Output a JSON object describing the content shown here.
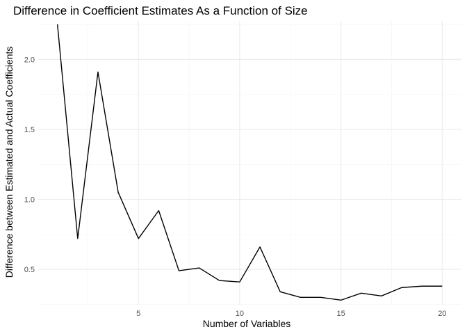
{
  "chart_data": {
    "type": "line",
    "title": "Difference in Coefficient Estimates As a Function of Size",
    "xlabel": "Number of Variables",
    "ylabel": "Difference between Estimated and Actual Coefficients",
    "x": [
      1,
      2,
      3,
      4,
      5,
      6,
      7,
      8,
      9,
      10,
      11,
      12,
      13,
      14,
      15,
      16,
      17,
      18,
      19,
      20
    ],
    "values": [
      2.25,
      0.72,
      1.91,
      1.05,
      0.72,
      0.92,
      0.49,
      0.51,
      0.42,
      0.41,
      0.66,
      0.34,
      0.3,
      0.3,
      0.28,
      0.33,
      0.31,
      0.37,
      0.38,
      0.38
    ],
    "xlim": [
      0.05,
      20.95
    ],
    "ylim": [
      0.247,
      2.275
    ],
    "xticks": [
      5,
      10,
      15,
      20
    ],
    "xtick_labels": [
      "5",
      "10",
      "15",
      "20"
    ],
    "yticks": [
      0.5,
      1.0,
      1.5,
      2.0
    ],
    "ytick_labels": [
      "0.5",
      "1.0",
      "1.5",
      "2.0"
    ],
    "grid": true,
    "legend": "none",
    "colors": {
      "line": "#000000",
      "grid": "#ebebeb",
      "background": "#ffffff"
    }
  }
}
